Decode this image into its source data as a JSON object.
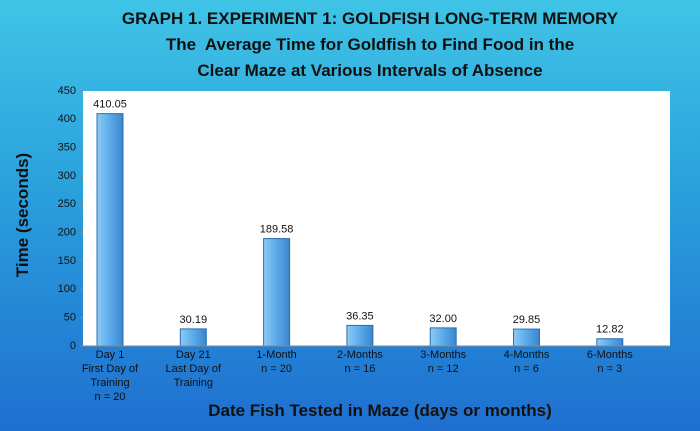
{
  "chart_data": {
    "type": "bar",
    "title": "GRAPH 1. EXPERIMENT 1: GOLDFISH LONG-TERM MEMORY",
    "subtitle": [
      "The  Average Time for Goldfish to Find Food in the",
      "Clear Maze at Various Intervals of Absence"
    ],
    "x_label": "Date Fish Tested in Maze (days or months)",
    "y_label": "Time (seconds)",
    "categories": [
      [
        "Day 1",
        "First Day of",
        "Training",
        "n = 20"
      ],
      [
        "Day 21",
        "Last Day of",
        "Training"
      ],
      [
        "1-Month",
        "n = 20"
      ],
      [
        "2-Months",
        "n = 16"
      ],
      [
        "3-Months",
        "n = 12"
      ],
      [
        "4-Months",
        "n = 6"
      ],
      [
        "6-Months",
        "n = 3"
      ]
    ],
    "values": [
      410.05,
      30.19,
      189.58,
      36.35,
      32.0,
      29.85,
      12.82
    ],
    "value_labels": [
      "410.05",
      "30.19",
      "189.58",
      "36.35",
      "32.00",
      "29.85",
      "12.82"
    ],
    "color": "#5aaaea",
    "ylim": [
      0,
      450
    ],
    "yticks": [
      0,
      50,
      100,
      150,
      200,
      250,
      300,
      350,
      400,
      450
    ],
    "grid": false
  }
}
